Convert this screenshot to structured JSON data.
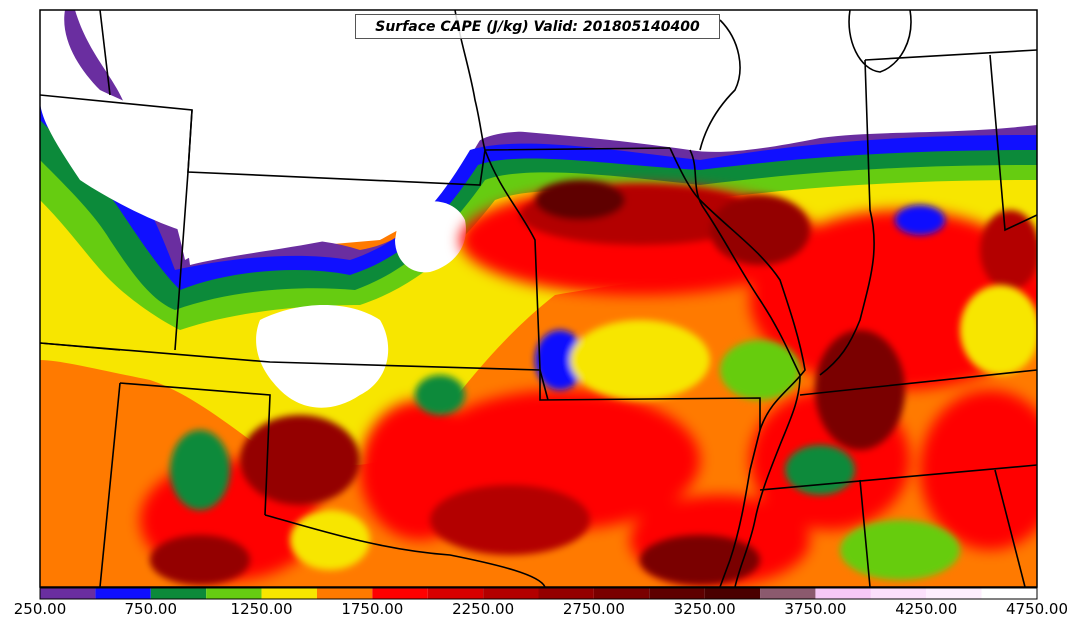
{
  "map": {
    "title": "Surface CAPE (J/kg) Valid: 201805140400",
    "field": "Surface CAPE",
    "units": "J/kg",
    "valid_time": "201805140400"
  },
  "colorbar": {
    "min": 250,
    "max": 4750,
    "step": 250,
    "ticks": [
      "250.00",
      "750.00",
      "1250.00",
      "1750.00",
      "2250.00",
      "2750.00",
      "3250.00",
      "3750.00",
      "4250.00",
      "4750.00"
    ],
    "levels": [
      {
        "from": 250,
        "to": 500,
        "color": "#6a2ea0"
      },
      {
        "from": 500,
        "to": 750,
        "color": "#1010ff"
      },
      {
        "from": 750,
        "to": 1000,
        "color": "#0c8a3a"
      },
      {
        "from": 1000,
        "to": 1250,
        "color": "#66cc11"
      },
      {
        "from": 1250,
        "to": 1500,
        "color": "#f7e600"
      },
      {
        "from": 1500,
        "to": 1750,
        "color": "#ff7a00"
      },
      {
        "from": 1750,
        "to": 2000,
        "color": "#ff0000"
      },
      {
        "from": 2000,
        "to": 2250,
        "color": "#d80000"
      },
      {
        "from": 2250,
        "to": 2500,
        "color": "#b30000"
      },
      {
        "from": 2500,
        "to": 2750,
        "color": "#940000"
      },
      {
        "from": 2750,
        "to": 3000,
        "color": "#7a0000"
      },
      {
        "from": 3000,
        "to": 3250,
        "color": "#5e0000"
      },
      {
        "from": 3250,
        "to": 3500,
        "color": "#4a0000"
      },
      {
        "from": 3500,
        "to": 3750,
        "color": "#8b5a6e"
      },
      {
        "from": 3750,
        "to": 4000,
        "color": "#f6c8f6"
      },
      {
        "from": 4000,
        "to": 4250,
        "color": "#fbe0fb"
      },
      {
        "from": 4250,
        "to": 4500,
        "color": "#fdeefd"
      },
      {
        "from": 4500,
        "to": 4750,
        "color": "#ffffff"
      }
    ]
  }
}
